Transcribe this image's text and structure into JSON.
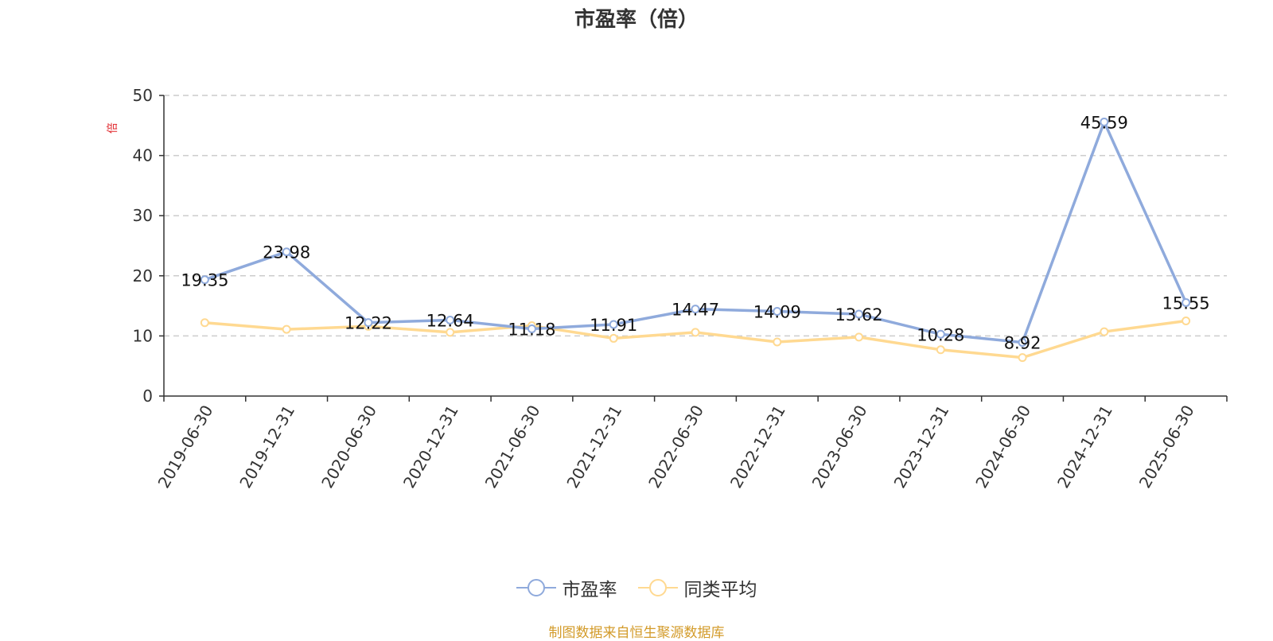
{
  "chart_data": {
    "type": "line",
    "title": "市盈率（倍）",
    "ylabel": "倍",
    "ylim": [
      0,
      50
    ],
    "yticks": [
      0,
      10,
      20,
      30,
      40,
      50
    ],
    "grid": true,
    "legend_position": "bottom",
    "categories": [
      "2019-06-30",
      "2019-12-31",
      "2020-06-30",
      "2020-12-31",
      "2021-06-30",
      "2021-12-31",
      "2022-06-30",
      "2022-12-31",
      "2023-06-30",
      "2023-12-31",
      "2024-06-30",
      "2024-12-31",
      "2025-06-30"
    ],
    "series": [
      {
        "name": "市盈率",
        "color": "#8faadc",
        "values": [
          19.35,
          23.98,
          12.22,
          12.64,
          11.18,
          11.91,
          14.47,
          14.09,
          13.62,
          10.28,
          8.92,
          45.59,
          15.55
        ],
        "data_labels": [
          "19.35",
          "23.98",
          "12.22",
          "12.64",
          "11.18",
          "11.91",
          "14.47",
          "14.09",
          "13.62",
          "10.28",
          "8.92",
          "45.59",
          "15.55"
        ]
      },
      {
        "name": "同类平均",
        "color": "#ffd991",
        "values": [
          12.2,
          11.1,
          11.6,
          10.6,
          11.7,
          9.6,
          10.6,
          9.0,
          9.8,
          7.7,
          6.4,
          10.7,
          12.5
        ]
      }
    ]
  },
  "footer": {
    "source": "制图数据来自恒生聚源数据库",
    "source_color": "#d39b2a"
  },
  "colors": {
    "axis": "#333333",
    "grid": "#cccccc",
    "unit": "#e0262b"
  }
}
